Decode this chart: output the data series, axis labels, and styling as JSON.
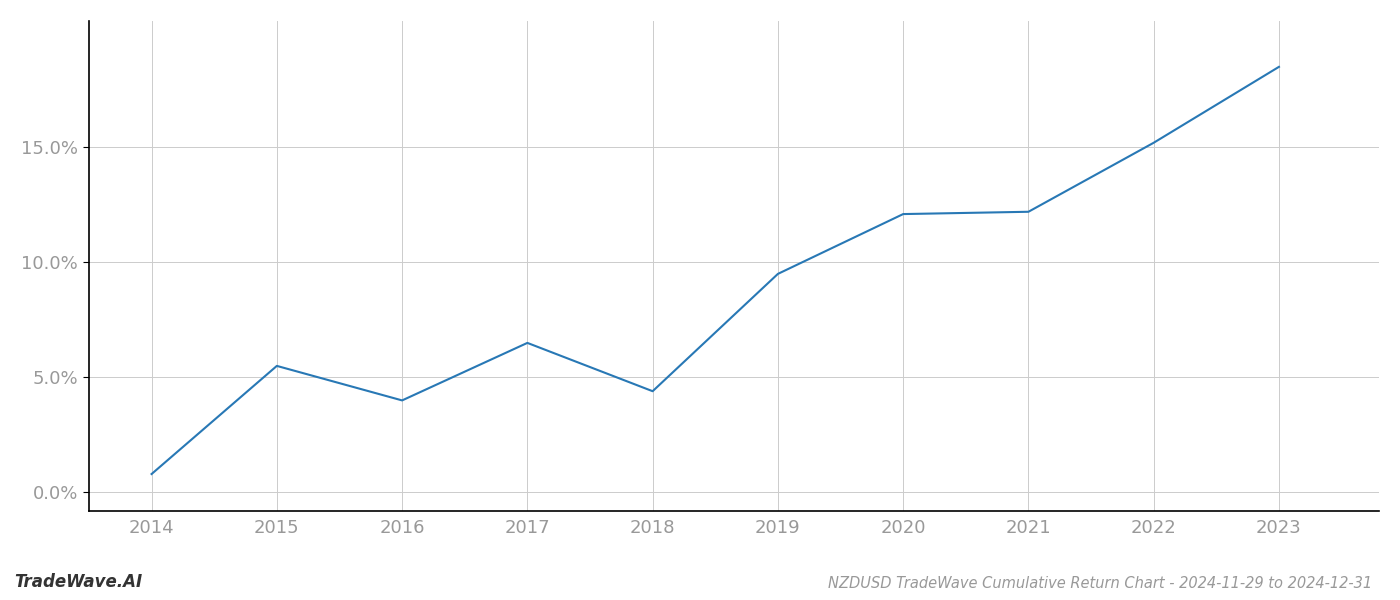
{
  "x_years": [
    2014,
    2015,
    2016,
    2017,
    2018,
    2019,
    2020,
    2021,
    2022,
    2023
  ],
  "y_values": [
    0.008,
    0.055,
    0.04,
    0.065,
    0.044,
    0.095,
    0.121,
    0.122,
    0.152,
    0.185
  ],
  "line_color": "#2878b5",
  "line_width": 1.5,
  "background_color": "#ffffff",
  "grid_color": "#cccccc",
  "title": "NZDUSD TradeWave Cumulative Return Chart - 2024-11-29 to 2024-12-31",
  "watermark": "TradeWave.AI",
  "xlim": [
    2013.5,
    2023.8
  ],
  "ylim": [
    -0.008,
    0.205
  ],
  "yticks": [
    0.0,
    0.05,
    0.1,
    0.15
  ],
  "xticks": [
    2014,
    2015,
    2016,
    2017,
    2018,
    2019,
    2020,
    2021,
    2022,
    2023
  ],
  "tick_label_color": "#999999",
  "tick_label_fontsize": 13,
  "title_fontsize": 10.5,
  "watermark_fontsize": 12,
  "spine_color": "#000000",
  "left_spine_color": "#000000"
}
